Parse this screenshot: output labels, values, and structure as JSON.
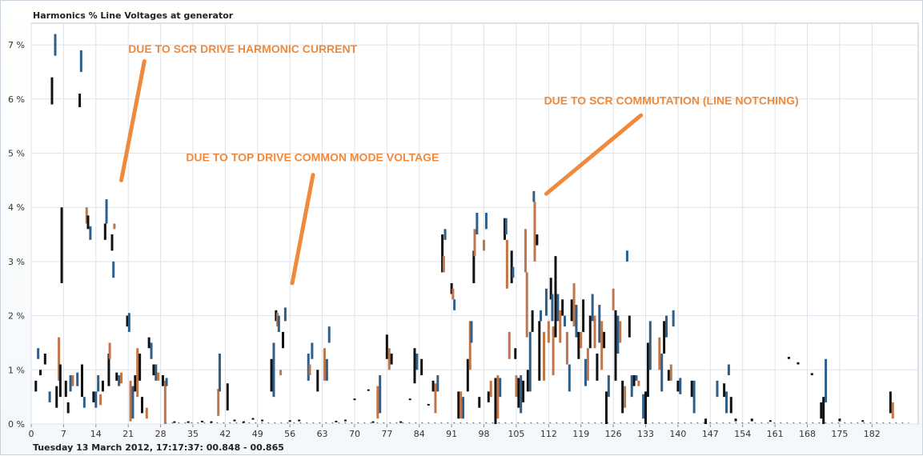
{
  "chart_data": {
    "type": "bar",
    "title": "Harmonics % Line Voltages at generator",
    "subtitle": "Tuesday 13 March 2012, 17:17:37: 00.848 - 00.865",
    "xlabel": "",
    "ylabel": "",
    "xlim": [
      0,
      192
    ],
    "ylim": [
      0,
      7.4
    ],
    "x_ticks": [
      "0",
      "7",
      "14",
      "21",
      "28",
      "35",
      "42",
      "49",
      "56",
      "63",
      "70",
      "77",
      "84",
      "91",
      "98",
      "105",
      "112",
      "119",
      "126",
      "133",
      "140",
      "147",
      "154",
      "161",
      "168",
      "175",
      "182"
    ],
    "y_ticks": [
      "0 %",
      "1 %",
      "2 %",
      "3 %",
      "4 %",
      "5 %",
      "6 %",
      "7 %"
    ],
    "grid": true,
    "series_colors": {
      "black": "#111111",
      "blue": "#2f5f88",
      "orange": "#c0764a"
    },
    "ranges": [
      [
        1,
        0.6,
        0.8,
        "black"
      ],
      [
        1.5,
        1.2,
        1.4,
        "blue"
      ],
      [
        2,
        0.9,
        1.0,
        "black"
      ],
      [
        3,
        1.1,
        1.3,
        "black"
      ],
      [
        4,
        0.4,
        0.6,
        "blue"
      ],
      [
        4.5,
        5.9,
        6.4,
        "black"
      ],
      [
        5.2,
        6.8,
        7.2,
        "blue"
      ],
      [
        5.5,
        0.3,
        0.7,
        "black"
      ],
      [
        6,
        0.8,
        1.6,
        "orange"
      ],
      [
        6.3,
        0.5,
        1.1,
        "black"
      ],
      [
        6.6,
        2.6,
        4.0,
        "black"
      ],
      [
        7.5,
        0.5,
        0.8,
        "black"
      ],
      [
        8,
        0.2,
        0.4,
        "black"
      ],
      [
        8.5,
        0.6,
        0.9,
        "blue"
      ],
      [
        9,
        0.7,
        0.9,
        "orange"
      ],
      [
        10,
        0.7,
        0.95,
        "blue"
      ],
      [
        10.5,
        5.85,
        6.1,
        "black"
      ],
      [
        10.8,
        6.5,
        6.9,
        "blue"
      ],
      [
        11,
        0.5,
        1.1,
        "black"
      ],
      [
        11.5,
        0.3,
        0.5,
        "blue"
      ],
      [
        12,
        3.7,
        4.0,
        "orange"
      ],
      [
        12.3,
        3.6,
        3.85,
        "black"
      ],
      [
        12.8,
        3.4,
        3.65,
        "blue"
      ],
      [
        13.5,
        0.4,
        0.6,
        "black"
      ],
      [
        14,
        0.3,
        0.6,
        "blue"
      ],
      [
        14.5,
        0.6,
        0.9,
        "blue"
      ],
      [
        15,
        0.35,
        0.55,
        "orange"
      ],
      [
        15.5,
        0.6,
        0.8,
        "black"
      ],
      [
        16,
        3.4,
        3.7,
        "black"
      ],
      [
        16.3,
        3.7,
        4.15,
        "blue"
      ],
      [
        16.8,
        0.7,
        1.3,
        "black"
      ],
      [
        17,
        1.2,
        1.5,
        "orange"
      ],
      [
        17.5,
        3.2,
        3.5,
        "black"
      ],
      [
        17.8,
        2.7,
        3.0,
        "blue"
      ],
      [
        18,
        3.6,
        3.7,
        "orange"
      ],
      [
        18.5,
        0.8,
        0.95,
        "black"
      ],
      [
        19,
        0.7,
        0.9,
        "blue"
      ],
      [
        19.5,
        0.75,
        0.95,
        "orange"
      ],
      [
        20.8,
        1.8,
        2.0,
        "black"
      ],
      [
        21.2,
        1.7,
        2.05,
        "blue"
      ],
      [
        21.5,
        0.05,
        0.8,
        "orange"
      ],
      [
        22,
        0.1,
        0.7,
        "blue"
      ],
      [
        22.5,
        0.6,
        0.9,
        "black"
      ],
      [
        23,
        0.5,
        1.4,
        "orange"
      ],
      [
        23.5,
        0.8,
        1.3,
        "black"
      ],
      [
        24,
        0.2,
        0.5,
        "black"
      ],
      [
        25,
        0.1,
        0.3,
        "orange"
      ],
      [
        25.5,
        1.4,
        1.6,
        "black"
      ],
      [
        26,
        1.2,
        1.5,
        "blue"
      ],
      [
        26.5,
        0.9,
        1.1,
        "black"
      ],
      [
        27,
        0.8,
        1.1,
        "blue"
      ],
      [
        27.5,
        0.8,
        0.95,
        "orange"
      ],
      [
        28.5,
        0.7,
        0.9,
        "black"
      ],
      [
        29,
        0.0,
        0.8,
        "orange"
      ],
      [
        29.3,
        0.7,
        0.85,
        "blue"
      ],
      [
        31,
        0.02,
        0.05,
        "black"
      ],
      [
        34,
        0.02,
        0.05,
        "black"
      ],
      [
        37,
        0.03,
        0.06,
        "black"
      ],
      [
        39,
        0.02,
        0.05,
        "black"
      ],
      [
        40.5,
        0.15,
        0.65,
        "orange"
      ],
      [
        40.8,
        0.6,
        1.3,
        "blue"
      ],
      [
        42.5,
        0.25,
        0.75,
        "black"
      ],
      [
        44,
        0.05,
        0.08,
        "black"
      ],
      [
        46,
        0.02,
        0.05,
        "black"
      ],
      [
        48,
        0.08,
        0.11,
        "black"
      ],
      [
        50,
        0.05,
        0.08,
        "black"
      ],
      [
        52,
        0.6,
        1.2,
        "black"
      ],
      [
        52.5,
        0.5,
        1.5,
        "blue"
      ],
      [
        53,
        1.9,
        2.1,
        "black"
      ],
      [
        53.3,
        1.8,
        2.05,
        "orange"
      ],
      [
        53.6,
        1.7,
        2.0,
        "blue"
      ],
      [
        54,
        0.9,
        1.0,
        "orange"
      ],
      [
        54.5,
        1.4,
        1.7,
        "black"
      ],
      [
        55,
        1.9,
        2.15,
        "blue"
      ],
      [
        56,
        0.04,
        0.07,
        "black"
      ],
      [
        58,
        0.05,
        0.08,
        "black"
      ],
      [
        60,
        0.8,
        1.3,
        "blue"
      ],
      [
        60.3,
        0.9,
        1.1,
        "orange"
      ],
      [
        60.8,
        1.2,
        1.5,
        "blue"
      ],
      [
        62,
        0.6,
        1.0,
        "black"
      ],
      [
        63.5,
        0.8,
        1.4,
        "orange"
      ],
      [
        64,
        0.8,
        1.2,
        "blue"
      ],
      [
        64.5,
        1.5,
        1.8,
        "blue"
      ],
      [
        66,
        0.03,
        0.06,
        "black"
      ],
      [
        68,
        0.05,
        0.08,
        "black"
      ],
      [
        70,
        0.45,
        0.47,
        "black"
      ],
      [
        73,
        0.62,
        0.64,
        "black"
      ],
      [
        74,
        0.02,
        0.05,
        "black"
      ],
      [
        75,
        0.1,
        0.7,
        "orange"
      ],
      [
        75.5,
        0.2,
        0.9,
        "blue"
      ],
      [
        77,
        1.2,
        1.65,
        "black"
      ],
      [
        77.5,
        1.0,
        1.4,
        "orange"
      ],
      [
        78,
        1.1,
        1.3,
        "black"
      ],
      [
        80,
        0.02,
        0.05,
        "black"
      ],
      [
        82,
        0.45,
        0.47,
        "black"
      ],
      [
        83,
        0.75,
        1.4,
        "black"
      ],
      [
        83.5,
        1.0,
        1.3,
        "blue"
      ],
      [
        84.5,
        0.9,
        1.2,
        "black"
      ],
      [
        86,
        0.35,
        0.37,
        "black"
      ],
      [
        87,
        0.6,
        0.8,
        "black"
      ],
      [
        87.5,
        0.2,
        0.75,
        "orange"
      ],
      [
        88,
        0.6,
        0.9,
        "blue"
      ],
      [
        89,
        2.8,
        3.5,
        "black"
      ],
      [
        89.3,
        2.8,
        3.1,
        "orange"
      ],
      [
        89.6,
        3.4,
        3.6,
        "blue"
      ],
      [
        91,
        2.4,
        2.6,
        "black"
      ],
      [
        91.3,
        2.3,
        2.5,
        "orange"
      ],
      [
        91.6,
        2.1,
        2.3,
        "blue"
      ],
      [
        92.5,
        0.1,
        0.6,
        "black"
      ],
      [
        93,
        0.1,
        0.6,
        "orange"
      ],
      [
        93.5,
        0.1,
        0.5,
        "blue"
      ],
      [
        94.5,
        0.6,
        1.2,
        "black"
      ],
      [
        95,
        1.0,
        1.9,
        "orange"
      ],
      [
        95.3,
        1.5,
        1.9,
        "blue"
      ],
      [
        95.8,
        2.6,
        3.2,
        "black"
      ],
      [
        96,
        3.1,
        3.6,
        "orange"
      ],
      [
        96.5,
        3.5,
        3.9,
        "blue"
      ],
      [
        97,
        0.3,
        0.5,
        "black"
      ],
      [
        98,
        3.2,
        3.4,
        "orange"
      ],
      [
        98.5,
        3.6,
        3.9,
        "blue"
      ],
      [
        99,
        0.4,
        0.6,
        "black"
      ],
      [
        99.5,
        0.5,
        0.8,
        "orange"
      ],
      [
        100.5,
        0.0,
        0.85,
        "black"
      ],
      [
        101,
        0.1,
        0.9,
        "orange"
      ],
      [
        101.5,
        0.5,
        0.85,
        "blue"
      ],
      [
        102.5,
        3.4,
        3.8,
        "black"
      ],
      [
        102.8,
        3.5,
        3.8,
        "blue"
      ],
      [
        103,
        2.5,
        3.4,
        "orange"
      ],
      [
        103.5,
        1.2,
        1.7,
        "orange"
      ],
      [
        104,
        2.6,
        3.2,
        "black"
      ],
      [
        104.3,
        2.7,
        2.9,
        "blue"
      ],
      [
        104.8,
        1.2,
        1.4,
        "black"
      ],
      [
        105,
        0.5,
        0.9,
        "orange"
      ],
      [
        105.5,
        0.3,
        0.85,
        "black"
      ],
      [
        106,
        0.2,
        0.9,
        "blue"
      ],
      [
        106.5,
        0.4,
        0.8,
        "black"
      ],
      [
        107,
        2.8,
        3.6,
        "orange"
      ],
      [
        107.3,
        1.6,
        2.8,
        "orange"
      ],
      [
        107.5,
        0.6,
        1.0,
        "black"
      ],
      [
        108,
        0.6,
        1.7,
        "blue"
      ],
      [
        108.5,
        1.7,
        2.1,
        "black"
      ],
      [
        108.8,
        4.1,
        4.3,
        "blue"
      ],
      [
        109,
        3.0,
        4.1,
        "orange"
      ],
      [
        109.5,
        3.3,
        3.5,
        "black"
      ],
      [
        110,
        0.8,
        1.9,
        "black"
      ],
      [
        110.3,
        1.9,
        2.1,
        "blue"
      ],
      [
        111,
        0.8,
        1.7,
        "orange"
      ],
      [
        111.5,
        2.0,
        2.5,
        "blue"
      ],
      [
        112,
        1.5,
        1.9,
        "orange"
      ],
      [
        112.5,
        2.3,
        2.7,
        "black"
      ],
      [
        112.8,
        1.9,
        2.4,
        "blue"
      ],
      [
        113,
        0.9,
        1.8,
        "orange"
      ],
      [
        113.5,
        1.6,
        3.1,
        "black"
      ],
      [
        114,
        1.9,
        2.4,
        "blue"
      ],
      [
        114.5,
        1.5,
        2.1,
        "orange"
      ],
      [
        115,
        2.0,
        2.3,
        "black"
      ],
      [
        115.5,
        1.8,
        2.0,
        "blue"
      ],
      [
        116,
        1.1,
        1.7,
        "orange"
      ],
      [
        116.5,
        0.6,
        1.1,
        "blue"
      ],
      [
        117,
        1.9,
        2.3,
        "black"
      ],
      [
        117.5,
        1.8,
        2.6,
        "orange"
      ],
      [
        118,
        1.6,
        2.2,
        "blue"
      ],
      [
        118.5,
        1.2,
        1.7,
        "black"
      ],
      [
        119,
        1.4,
        1.7,
        "orange"
      ],
      [
        119.5,
        1.7,
        2.3,
        "black"
      ],
      [
        120,
        0.7,
        1.2,
        "blue"
      ],
      [
        120.5,
        0.8,
        1.4,
        "orange"
      ],
      [
        121,
        1.4,
        2.0,
        "black"
      ],
      [
        121.5,
        1.9,
        2.4,
        "blue"
      ],
      [
        122,
        1.4,
        2.0,
        "orange"
      ],
      [
        122.5,
        0.8,
        1.3,
        "black"
      ],
      [
        123,
        1.5,
        2.2,
        "blue"
      ],
      [
        123.5,
        1.0,
        1.9,
        "orange"
      ],
      [
        124,
        1.4,
        1.7,
        "black"
      ],
      [
        124.5,
        0.0,
        0.6,
        "black"
      ],
      [
        125,
        0.5,
        0.9,
        "blue"
      ],
      [
        126,
        2.1,
        2.5,
        "orange"
      ],
      [
        126.5,
        0.8,
        2.1,
        "black"
      ],
      [
        127,
        1.3,
        2.0,
        "blue"
      ],
      [
        127.5,
        1.5,
        1.9,
        "orange"
      ],
      [
        128,
        0.2,
        0.8,
        "black"
      ],
      [
        128.5,
        0.3,
        0.7,
        "orange"
      ],
      [
        129,
        3.0,
        3.2,
        "blue"
      ],
      [
        129.5,
        1.6,
        2.0,
        "black"
      ],
      [
        130,
        0.5,
        0.9,
        "blue"
      ],
      [
        130.5,
        0.7,
        0.9,
        "black"
      ],
      [
        131,
        0.8,
        0.9,
        "blue"
      ],
      [
        131.5,
        0.7,
        0.8,
        "orange"
      ],
      [
        132.5,
        0.1,
        0.55,
        "blue"
      ],
      [
        133,
        0.0,
        0.6,
        "black"
      ],
      [
        133.5,
        0.5,
        1.5,
        "black"
      ],
      [
        134,
        1.0,
        1.9,
        "blue"
      ],
      [
        136,
        1.0,
        1.6,
        "orange"
      ],
      [
        136.5,
        0.6,
        1.3,
        "blue"
      ],
      [
        137,
        1.3,
        1.9,
        "black"
      ],
      [
        137.5,
        1.6,
        2.0,
        "blue"
      ],
      [
        138,
        0.8,
        1.0,
        "black"
      ],
      [
        138.5,
        0.8,
        1.1,
        "orange"
      ],
      [
        139,
        1.8,
        2.1,
        "blue"
      ],
      [
        140,
        0.6,
        0.8,
        "black"
      ],
      [
        140.5,
        0.55,
        0.85,
        "blue"
      ],
      [
        143,
        0.5,
        0.8,
        "black"
      ],
      [
        143.5,
        0.2,
        0.8,
        "blue"
      ],
      [
        146,
        0.0,
        0.1,
        "black"
      ],
      [
        148.5,
        0.5,
        0.8,
        "blue"
      ],
      [
        150,
        0.5,
        0.75,
        "black"
      ],
      [
        150.5,
        0.2,
        0.6,
        "blue"
      ],
      [
        151,
        0.9,
        1.1,
        "blue"
      ],
      [
        151.5,
        0.2,
        0.5,
        "black"
      ],
      [
        152.5,
        0.05,
        0.1,
        "black"
      ],
      [
        156,
        0.05,
        0.1,
        "black"
      ],
      [
        160,
        0.05,
        0.07,
        "black"
      ],
      [
        164,
        1.2,
        1.24,
        "black"
      ],
      [
        166,
        1.1,
        1.14,
        "black"
      ],
      [
        169,
        0.9,
        0.94,
        "black"
      ],
      [
        171,
        0.1,
        0.4,
        "black"
      ],
      [
        171.5,
        0.0,
        0.5,
        "black"
      ],
      [
        172,
        0.4,
        1.2,
        "blue"
      ],
      [
        175,
        0.05,
        0.1,
        "black"
      ],
      [
        180,
        0.05,
        0.07,
        "black"
      ],
      [
        186,
        0.2,
        0.6,
        "black"
      ],
      [
        186.5,
        0.1,
        0.4,
        "orange"
      ]
    ],
    "annotations": [
      {
        "text": "DUE TO SCR DRIVE HARMONIC CURRENT",
        "x": 21,
        "y": 6.85
      },
      {
        "text": "DUE TO TOP DRIVE COMMON MODE VOLTAGE",
        "x": 33.5,
        "y": 4.85
      },
      {
        "text": "DUE TO SCR COMMUTATION (LINE NOTCHING)",
        "x": 111,
        "y": 5.9
      }
    ],
    "arrows": [
      {
        "from": [
          19.5,
          4.5
        ],
        "to": [
          24.5,
          6.7
        ]
      },
      {
        "from": [
          56.5,
          2.6
        ],
        "to": [
          61,
          4.6
        ]
      },
      {
        "from": [
          111.5,
          4.25
        ],
        "to": [
          132,
          5.7
        ]
      }
    ]
  }
}
